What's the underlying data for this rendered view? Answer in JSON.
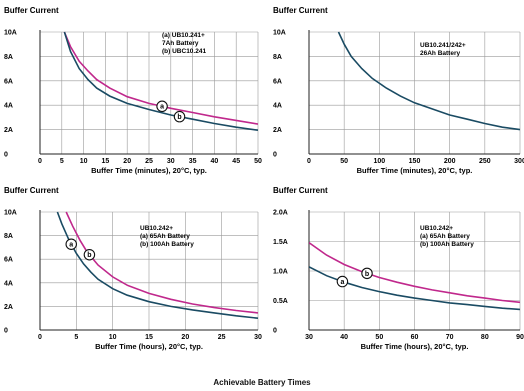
{
  "caption": "Achievable Battery Times",
  "chart_data": [
    {
      "type": "line",
      "title": "Buffer Current",
      "xlabel": "Buffer Time (minutes), 20°C, typ.",
      "ylabel": "",
      "xlim": [
        0,
        50
      ],
      "ylim": [
        0,
        10
      ],
      "xticks": [
        "0",
        "5",
        "10",
        "15",
        "20",
        "25",
        "30",
        "35",
        "40",
        "45",
        "50"
      ],
      "yticks": [
        "0",
        "2A",
        "4A",
        "6A",
        "8A",
        "10A"
      ],
      "grid": true,
      "annotation": [
        "(a) UB10.241+",
        "7Ah Battery",
        "(b) UBC10.241"
      ],
      "series": [
        {
          "marker": "a",
          "marker_x": 28,
          "color": "#c0288c",
          "x": [
            5.6,
            7,
            9,
            11,
            13,
            16,
            20,
            25,
            30,
            35,
            40,
            45,
            50
          ],
          "y": [
            10,
            8.8,
            7.6,
            6.8,
            6.1,
            5.4,
            4.7,
            4.15,
            3.75,
            3.4,
            3.05,
            2.75,
            2.45
          ]
        },
        {
          "marker": "b",
          "marker_x": 32,
          "color": "#1a4b63",
          "x": [
            5.6,
            7,
            9,
            11,
            13,
            16,
            20,
            25,
            30,
            35,
            40,
            45,
            50
          ],
          "y": [
            10,
            8.4,
            7.0,
            6.1,
            5.4,
            4.75,
            4.15,
            3.65,
            3.2,
            2.85,
            2.5,
            2.2,
            1.95
          ]
        }
      ]
    },
    {
      "type": "line",
      "title": "Buffer Current",
      "xlabel": "Buffer Time (minutes), 20°C, typ.",
      "ylabel": "",
      "xlim": [
        0,
        300
      ],
      "ylim": [
        0,
        10
      ],
      "xticks": [
        "0",
        "50",
        "100",
        "150",
        "200",
        "250",
        "300"
      ],
      "yticks": [
        "0",
        "2A",
        "4A",
        "6A",
        "8A",
        "10A"
      ],
      "grid": true,
      "annotation": [
        "UB10.241/242+",
        "26Ah Battery"
      ],
      "series": [
        {
          "color": "#1a4b63",
          "x": [
            42,
            50,
            60,
            75,
            90,
            110,
            130,
            150,
            175,
            200,
            225,
            250,
            275,
            300
          ],
          "y": [
            10,
            9.0,
            8.0,
            7.0,
            6.2,
            5.4,
            4.75,
            4.2,
            3.7,
            3.2,
            2.85,
            2.5,
            2.2,
            2.0
          ]
        }
      ]
    },
    {
      "type": "line",
      "title": "Buffer Current",
      "xlabel": "Buffer Time (hours), 20°C, typ.",
      "ylabel": "",
      "xlim": [
        0,
        30
      ],
      "ylim": [
        0,
        10
      ],
      "xticks": [
        "0",
        "5",
        "10",
        "15",
        "20",
        "25",
        "30"
      ],
      "yticks": [
        "0",
        "2A",
        "4A",
        "6A",
        "8A",
        "10A"
      ],
      "grid": true,
      "annotation": [
        "UB10.242+",
        "(a) 65Ah Battery",
        "(b) 100Ah Battery"
      ],
      "series": [
        {
          "marker": "a",
          "marker_x": 4.3,
          "color": "#1a4b63",
          "x": [
            2.4,
            3,
            4,
            5,
            6,
            7,
            8,
            10,
            12,
            15,
            18,
            21,
            24,
            27,
            30
          ],
          "y": [
            10,
            9.0,
            7.6,
            6.5,
            5.6,
            4.9,
            4.3,
            3.5,
            2.95,
            2.4,
            2.0,
            1.7,
            1.45,
            1.2,
            1.0
          ]
        },
        {
          "marker": "b",
          "marker_x": 6.8,
          "color": "#c0288c",
          "x": [
            3.6,
            4.5,
            5.5,
            6.5,
            8,
            10,
            12,
            15,
            18,
            21,
            24,
            27,
            30
          ],
          "y": [
            10,
            8.8,
            7.6,
            6.6,
            5.5,
            4.5,
            3.8,
            3.1,
            2.6,
            2.2,
            1.9,
            1.65,
            1.45
          ]
        }
      ]
    },
    {
      "type": "line",
      "title": "Buffer Current",
      "xlabel": "Buffer Time (hours), 20°C, typ.",
      "ylabel": "",
      "xlim": [
        30,
        90
      ],
      "ylim": [
        0,
        2.0
      ],
      "xticks": [
        "30",
        "40",
        "50",
        "60",
        "70",
        "80",
        "90"
      ],
      "yticks": [
        "0",
        "0.5A",
        "1.0A",
        "1.5A",
        "2.0A"
      ],
      "grid": true,
      "annotation": [
        "UB10.242+",
        "(a) 65Ah Battery",
        "(b) 100Ah Battery"
      ],
      "series": [
        {
          "marker": "a",
          "marker_x": 39.5,
          "color": "#1a4b63",
          "x": [
            30,
            35,
            40,
            45,
            50,
            55,
            60,
            65,
            70,
            75,
            80,
            85,
            90
          ],
          "y": [
            1.07,
            0.92,
            0.81,
            0.72,
            0.65,
            0.59,
            0.54,
            0.5,
            0.46,
            0.43,
            0.4,
            0.37,
            0.35
          ]
        },
        {
          "marker": "b",
          "marker_x": 46.5,
          "color": "#c0288c",
          "x": [
            30,
            35,
            40,
            45,
            50,
            55,
            60,
            65,
            70,
            75,
            80,
            85,
            90
          ],
          "y": [
            1.48,
            1.27,
            1.11,
            0.99,
            0.89,
            0.81,
            0.74,
            0.68,
            0.63,
            0.58,
            0.54,
            0.5,
            0.47
          ]
        }
      ]
    }
  ]
}
